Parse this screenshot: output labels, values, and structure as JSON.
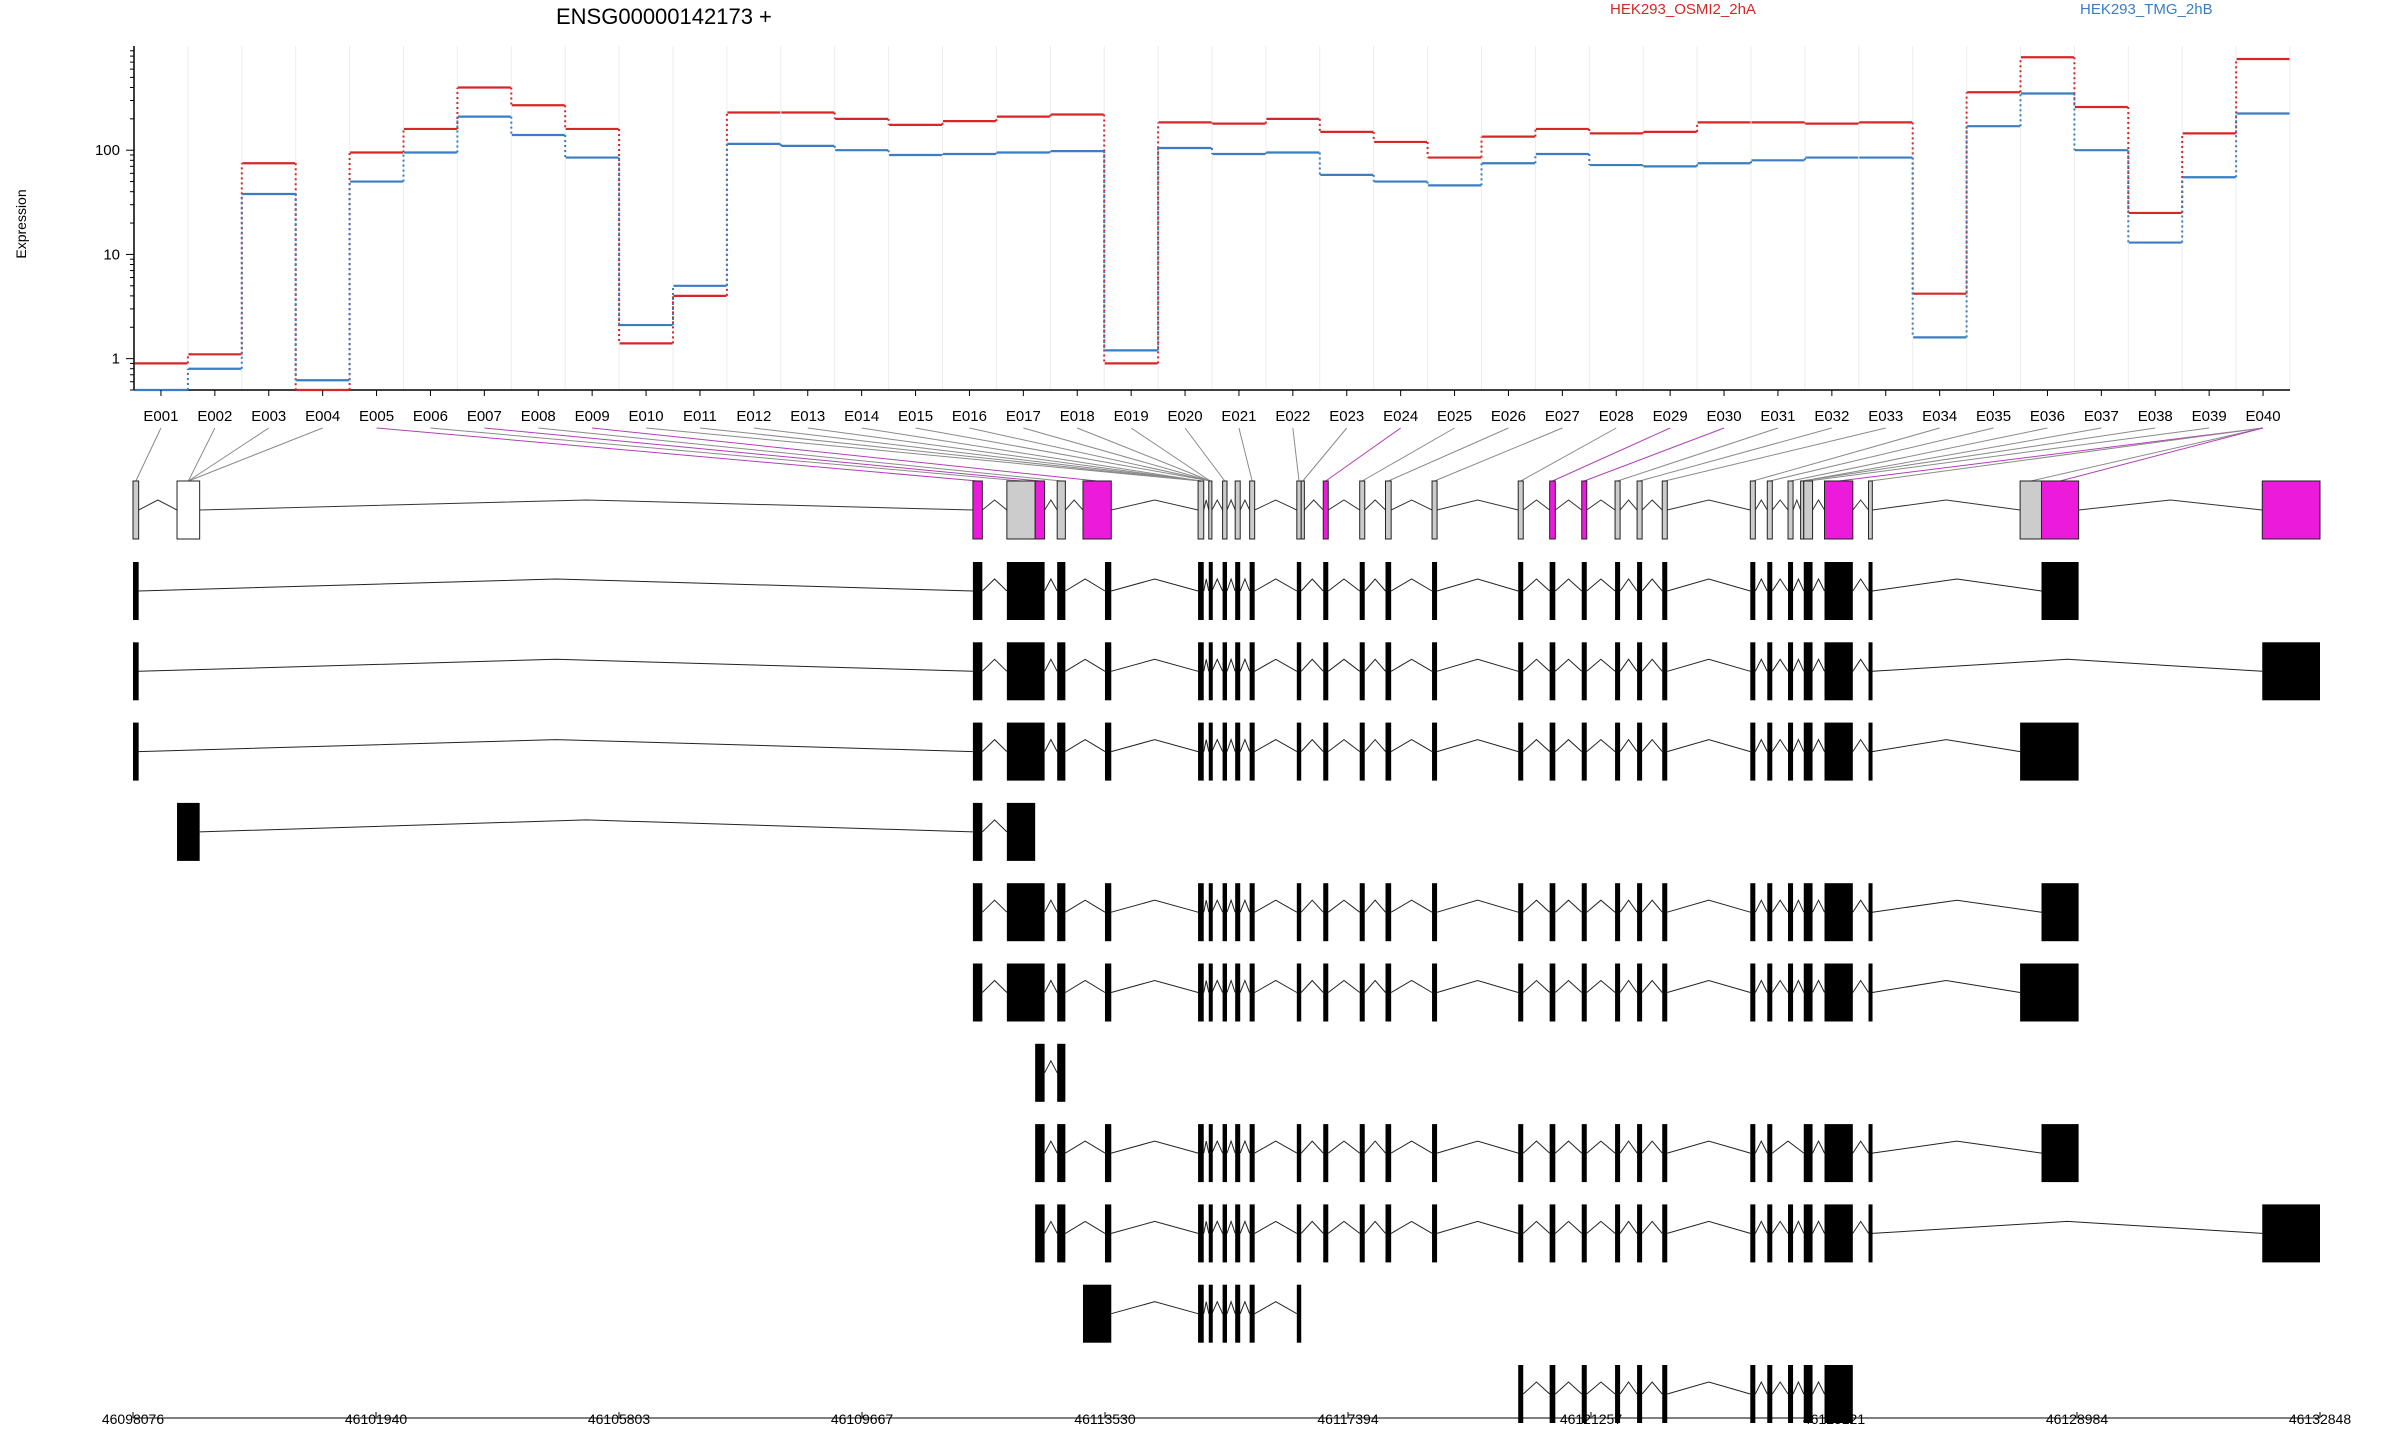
{
  "title": "ENSG00000142173 +",
  "legend": [
    {
      "name": "HEK293_OSMI2_2hA",
      "color": "#d62728"
    },
    {
      "name": "HEK293_TMG_2hB",
      "color": "#3a7dc2"
    }
  ],
  "chart_data": {
    "type": "line",
    "title": "ENSG00000142173 +",
    "ylabel": "Expression",
    "yscale": "log",
    "ylim": [
      0.5,
      1000
    ],
    "yticks": [
      "1",
      "10",
      "100"
    ],
    "ytick_values": [
      1,
      10,
      100
    ],
    "categories": [
      "E001",
      "E002",
      "E003",
      "E004",
      "E005",
      "E006",
      "E007",
      "E008",
      "E009",
      "E010",
      "E011",
      "E012",
      "E013",
      "E014",
      "E015",
      "E016",
      "E017",
      "E018",
      "E019",
      "E020",
      "E021",
      "E022",
      "E023",
      "E024",
      "E025",
      "E026",
      "E027",
      "E028",
      "E029",
      "E030",
      "E031",
      "E032",
      "E033",
      "E034",
      "E035",
      "E036",
      "E037",
      "E038",
      "E039",
      "E040"
    ],
    "series": [
      {
        "name": "HEK293_OSMI2_2hA",
        "color": "#d62728",
        "values": [
          0.9,
          1.1,
          75,
          0.5,
          95,
          160,
          400,
          270,
          160,
          1.4,
          4,
          230,
          230,
          200,
          175,
          190,
          210,
          220,
          0.9,
          185,
          180,
          200,
          150,
          120,
          85,
          135,
          160,
          145,
          150,
          185,
          185,
          180,
          185,
          4.2,
          360,
          780,
          260,
          25,
          145,
          750
        ]
      },
      {
        "name": "HEK293_TMG_2hB",
        "color": "#3a7dc2",
        "values": [
          0.5,
          0.8,
          38,
          0.62,
          50,
          95,
          210,
          140,
          85,
          2.1,
          5,
          115,
          110,
          100,
          90,
          92,
          95,
          98,
          1.2,
          105,
          92,
          95,
          58,
          50,
          46,
          75,
          92,
          72,
          70,
          75,
          80,
          85,
          85,
          1.6,
          170,
          350,
          100,
          13,
          55,
          225
        ]
      }
    ],
    "grid": true,
    "legend_position": "top",
    "genome_axis": {
      "ticks": [
        "46098076",
        "46101940",
        "46105803",
        "46109667",
        "46113530",
        "46117394",
        "46121257",
        "46125121",
        "46128984",
        "46132848"
      ],
      "tick_values": [
        46098076,
        46101940,
        46105803,
        46109667,
        46113530,
        46117394,
        46121257,
        46125121,
        46128984,
        46132848
      ]
    },
    "exon_bins": [
      [
        46098076,
        46098166,
        "grey"
      ],
      [
        46098776,
        46099136,
        "white"
      ],
      [
        46111430,
        46111580,
        "magenta"
      ],
      [
        46111970,
        46112420,
        "grey"
      ],
      [
        46112420,
        46112570,
        "magenta"
      ],
      [
        46112770,
        46112900,
        "grey"
      ],
      [
        46113180,
        46113630,
        "magenta"
      ],
      [
        46115010,
        46115100,
        "grey"
      ],
      [
        46115180,
        46115230,
        "grey"
      ],
      [
        46115400,
        46115470,
        "grey"
      ],
      [
        46115600,
        46115680,
        "grey"
      ],
      [
        46115830,
        46115910,
        "grey"
      ],
      [
        46116580,
        46116650,
        "grey"
      ],
      [
        46116650,
        46116700,
        "grey"
      ],
      [
        46117000,
        46117080,
        "magenta"
      ],
      [
        46117580,
        46117660,
        "grey"
      ],
      [
        46117990,
        46118080,
        "grey"
      ],
      [
        46118730,
        46118810,
        "grey"
      ],
      [
        46120100,
        46120180,
        "grey"
      ],
      [
        46120600,
        46120690,
        "magenta"
      ],
      [
        46121110,
        46121190,
        "magenta"
      ],
      [
        46121640,
        46121720,
        "grey"
      ],
      [
        46121990,
        46122070,
        "grey"
      ],
      [
        46122390,
        46122470,
        "grey"
      ],
      [
        46123790,
        46123870,
        "grey"
      ],
      [
        46124060,
        46124140,
        "grey"
      ],
      [
        46124390,
        46124470,
        "grey"
      ],
      [
        46124590,
        46124640,
        "grey"
      ],
      [
        46124640,
        46124780,
        "grey"
      ],
      [
        46124970,
        46125420,
        "magenta"
      ],
      [
        46125670,
        46125730,
        "grey"
      ],
      [
        46128080,
        46128420,
        "grey"
      ],
      [
        46128420,
        46129010,
        "magenta"
      ],
      [
        46131930,
        46132848,
        "magenta"
      ]
    ],
    "bin_connectors": [
      [
        0,
        0
      ],
      [
        1,
        1
      ],
      [
        2,
        1
      ],
      [
        3,
        1
      ],
      [
        4,
        2
      ],
      [
        5,
        3
      ],
      [
        6,
        4
      ],
      [
        7,
        5
      ],
      [
        8,
        6
      ],
      [
        9,
        7
      ],
      [
        10,
        7
      ],
      [
        11,
        7
      ],
      [
        12,
        7
      ],
      [
        13,
        7
      ],
      [
        14,
        8
      ],
      [
        15,
        8
      ],
      [
        16,
        8
      ],
      [
        17,
        8
      ],
      [
        18,
        8
      ],
      [
        19,
        9
      ],
      [
        20,
        11
      ],
      [
        21,
        12
      ],
      [
        22,
        13
      ],
      [
        23,
        14
      ],
      [
        24,
        15
      ],
      [
        25,
        16
      ],
      [
        26,
        17
      ],
      [
        27,
        18
      ],
      [
        28,
        19
      ],
      [
        29,
        20
      ],
      [
        30,
        21
      ],
      [
        31,
        22
      ],
      [
        32,
        23
      ],
      [
        33,
        24
      ],
      [
        34,
        25
      ],
      [
        35,
        26
      ],
      [
        36,
        27
      ],
      [
        37,
        27
      ],
      [
        38,
        28
      ],
      [
        39,
        29
      ],
      [
        39,
        30
      ],
      [
        39,
        31
      ],
      [
        39,
        32
      ]
    ],
    "transcripts": [
      [
        [
          46098076,
          46098166
        ],
        [
          46111430,
          46111580
        ],
        [
          46111970,
          46112570
        ],
        [
          46112770,
          46112900
        ],
        [
          46113530,
          46113630
        ],
        [
          46115010,
          46115100
        ],
        [
          46115180,
          46115230
        ],
        [
          46115400,
          46115470
        ],
        [
          46115600,
          46115680
        ],
        [
          46115830,
          46115910
        ],
        [
          46116580,
          46116650
        ],
        [
          46117000,
          46117080
        ],
        [
          46117580,
          46117660
        ],
        [
          46117990,
          46118080
        ],
        [
          46118730,
          46118810
        ],
        [
          46120100,
          46120180
        ],
        [
          46120600,
          46120690
        ],
        [
          46121110,
          46121190
        ],
        [
          46121640,
          46121720
        ],
        [
          46121990,
          46122070
        ],
        [
          46122390,
          46122470
        ],
        [
          46123790,
          46123870
        ],
        [
          46124060,
          46124140
        ],
        [
          46124390,
          46124470
        ],
        [
          46124640,
          46124780
        ],
        [
          46124970,
          46125420
        ],
        [
          46125670,
          46125730
        ],
        [
          46128420,
          46129010
        ]
      ],
      [
        [
          46098076,
          46098166
        ],
        [
          46111430,
          46111580
        ],
        [
          46111970,
          46112570
        ],
        [
          46112770,
          46112900
        ],
        [
          46113530,
          46113630
        ],
        [
          46115010,
          46115100
        ],
        [
          46115180,
          46115230
        ],
        [
          46115400,
          46115470
        ],
        [
          46115600,
          46115680
        ],
        [
          46115830,
          46115910
        ],
        [
          46116580,
          46116650
        ],
        [
          46117000,
          46117080
        ],
        [
          46117580,
          46117660
        ],
        [
          46117990,
          46118080
        ],
        [
          46118730,
          46118810
        ],
        [
          46120100,
          46120180
        ],
        [
          46120600,
          46120690
        ],
        [
          46121110,
          46121190
        ],
        [
          46121640,
          46121720
        ],
        [
          46121990,
          46122070
        ],
        [
          46122390,
          46122470
        ],
        [
          46123790,
          46123870
        ],
        [
          46124060,
          46124140
        ],
        [
          46124390,
          46124470
        ],
        [
          46124640,
          46124780
        ],
        [
          46124970,
          46125420
        ],
        [
          46125670,
          46125730
        ],
        [
          46131930,
          46132848
        ]
      ],
      [
        [
          46098076,
          46098166
        ],
        [
          46111430,
          46111580
        ],
        [
          46111970,
          46112570
        ],
        [
          46112770,
          46112900
        ],
        [
          46113530,
          46113630
        ],
        [
          46115010,
          46115100
        ],
        [
          46115180,
          46115230
        ],
        [
          46115400,
          46115470
        ],
        [
          46115600,
          46115680
        ],
        [
          46115830,
          46115910
        ],
        [
          46116580,
          46116650
        ],
        [
          46117000,
          46117080
        ],
        [
          46117580,
          46117660
        ],
        [
          46117990,
          46118080
        ],
        [
          46118730,
          46118810
        ],
        [
          46120100,
          46120180
        ],
        [
          46120600,
          46120690
        ],
        [
          46121110,
          46121190
        ],
        [
          46121640,
          46121720
        ],
        [
          46121990,
          46122070
        ],
        [
          46122390,
          46122470
        ],
        [
          46123790,
          46123870
        ],
        [
          46124060,
          46124140
        ],
        [
          46124390,
          46124470
        ],
        [
          46124640,
          46124780
        ],
        [
          46124970,
          46125420
        ],
        [
          46125670,
          46125730
        ],
        [
          46128080,
          46129010
        ]
      ],
      [
        [
          46098776,
          46099136
        ],
        [
          46111430,
          46111580
        ],
        [
          46111970,
          46112420
        ]
      ],
      [
        [
          46111430,
          46111580
        ],
        [
          46111970,
          46112570
        ],
        [
          46112770,
          46112900
        ],
        [
          46113530,
          46113630
        ],
        [
          46115010,
          46115100
        ],
        [
          46115180,
          46115230
        ],
        [
          46115400,
          46115470
        ],
        [
          46115600,
          46115680
        ],
        [
          46115830,
          46115910
        ],
        [
          46116580,
          46116650
        ],
        [
          46117000,
          46117080
        ],
        [
          46117580,
          46117660
        ],
        [
          46117990,
          46118080
        ],
        [
          46118730,
          46118810
        ],
        [
          46120100,
          46120180
        ],
        [
          46120600,
          46120690
        ],
        [
          46121110,
          46121190
        ],
        [
          46121640,
          46121720
        ],
        [
          46121990,
          46122070
        ],
        [
          46122390,
          46122470
        ],
        [
          46123790,
          46123870
        ],
        [
          46124060,
          46124140
        ],
        [
          46124390,
          46124470
        ],
        [
          46124640,
          46124780
        ],
        [
          46124970,
          46125420
        ],
        [
          46125670,
          46125730
        ],
        [
          46128420,
          46129010
        ]
      ],
      [
        [
          46111430,
          46111580
        ],
        [
          46111970,
          46112570
        ],
        [
          46112770,
          46112900
        ],
        [
          46113530,
          46113630
        ],
        [
          46115010,
          46115100
        ],
        [
          46115180,
          46115230
        ],
        [
          46115400,
          46115470
        ],
        [
          46115600,
          46115680
        ],
        [
          46115830,
          46115910
        ],
        [
          46116580,
          46116650
        ],
        [
          46117000,
          46117080
        ],
        [
          46117580,
          46117660
        ],
        [
          46117990,
          46118080
        ],
        [
          46118730,
          46118810
        ],
        [
          46120100,
          46120180
        ],
        [
          46120600,
          46120690
        ],
        [
          46121110,
          46121190
        ],
        [
          46121640,
          46121720
        ],
        [
          46121990,
          46122070
        ],
        [
          46122390,
          46122470
        ],
        [
          46123790,
          46123870
        ],
        [
          46124060,
          46124140
        ],
        [
          46124390,
          46124470
        ],
        [
          46124640,
          46124780
        ],
        [
          46124970,
          46125420
        ],
        [
          46125670,
          46125730
        ],
        [
          46128080,
          46129010
        ]
      ],
      [
        [
          46112420,
          46112570
        ],
        [
          46112770,
          46112900
        ]
      ],
      [
        [
          46112420,
          46112570
        ],
        [
          46112770,
          46112900
        ],
        [
          46113530,
          46113630
        ],
        [
          46115010,
          46115100
        ],
        [
          46115180,
          46115230
        ],
        [
          46115400,
          46115470
        ],
        [
          46115600,
          46115680
        ],
        [
          46115830,
          46115910
        ],
        [
          46116580,
          46116650
        ],
        [
          46117000,
          46117080
        ],
        [
          46117580,
          46117660
        ],
        [
          46117990,
          46118080
        ],
        [
          46118730,
          46118810
        ],
        [
          46120100,
          46120180
        ],
        [
          46120600,
          46120690
        ],
        [
          46121110,
          46121190
        ],
        [
          46121640,
          46121720
        ],
        [
          46121990,
          46122070
        ],
        [
          46122390,
          46122470
        ],
        [
          46123790,
          46123870
        ],
        [
          46124060,
          46124140
        ],
        [
          46124640,
          46124780
        ],
        [
          46124970,
          46125420
        ],
        [
          46125670,
          46125730
        ],
        [
          46128420,
          46129010
        ]
      ],
      [
        [
          46112420,
          46112570
        ],
        [
          46112770,
          46112900
        ],
        [
          46113530,
          46113630
        ],
        [
          46115010,
          46115100
        ],
        [
          46115180,
          46115230
        ],
        [
          46115400,
          46115470
        ],
        [
          46115600,
          46115680
        ],
        [
          46115830,
          46115910
        ],
        [
          46116580,
          46116650
        ],
        [
          46117000,
          46117080
        ],
        [
          46117580,
          46117660
        ],
        [
          46117990,
          46118080
        ],
        [
          46118730,
          46118810
        ],
        [
          46120100,
          46120180
        ],
        [
          46120600,
          46120690
        ],
        [
          46121110,
          46121190
        ],
        [
          46121640,
          46121720
        ],
        [
          46121990,
          46122070
        ],
        [
          46122390,
          46122470
        ],
        [
          46123790,
          46123870
        ],
        [
          46124060,
          46124140
        ],
        [
          46124390,
          46124470
        ],
        [
          46124640,
          46124780
        ],
        [
          46124970,
          46125420
        ],
        [
          46125670,
          46125730
        ],
        [
          46131930,
          46132848
        ]
      ],
      [
        [
          46113180,
          46113630
        ],
        [
          46115010,
          46115100
        ],
        [
          46115180,
          46115230
        ],
        [
          46115400,
          46115470
        ],
        [
          46115600,
          46115680
        ],
        [
          46115830,
          46115910
        ],
        [
          46116580,
          46116650
        ]
      ],
      [
        [
          46120100,
          46120180
        ],
        [
          46120600,
          46120690
        ],
        [
          46121110,
          46121190
        ],
        [
          46121640,
          46121720
        ],
        [
          46121990,
          46122070
        ],
        [
          46122390,
          46122470
        ],
        [
          46123790,
          46123870
        ],
        [
          46124060,
          46124140
        ],
        [
          46124390,
          46124470
        ],
        [
          46124640,
          46124780
        ],
        [
          46124970,
          46125420
        ]
      ]
    ]
  }
}
